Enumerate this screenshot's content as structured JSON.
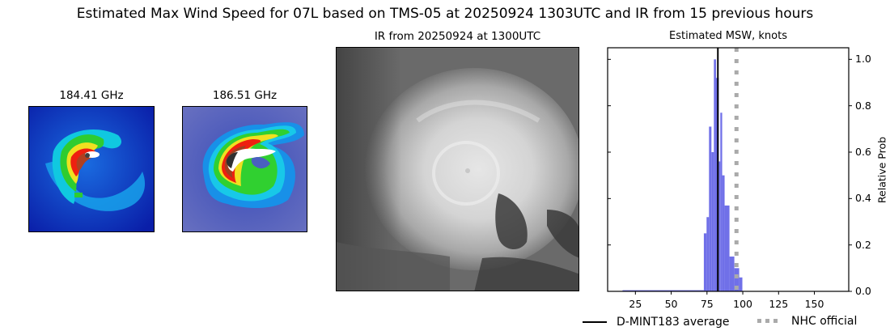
{
  "figure": {
    "suptitle": "Estimated Max Wind Speed for 07L based on TMS-05 at 20250924 1303UTC and IR from 15 previous hours"
  },
  "panels": {
    "mw1": {
      "title": "184.41 GHz",
      "icon": "microwave-image"
    },
    "mw2": {
      "title": "186.51 GHz",
      "icon": "microwave-image"
    },
    "ir": {
      "title": "IR from 20250924 at 1300UTC",
      "icon": "infrared-satellite-image"
    },
    "hist": {
      "title": "Estimated MSW, knots"
    }
  },
  "legend": {
    "items": [
      {
        "label": "D-MINT183 average",
        "style": "solid",
        "color": "#000000"
      },
      {
        "label": "NHC official",
        "style": "dotted",
        "color": "#aaaaaa"
      }
    ]
  },
  "chart_data": {
    "type": "bar",
    "title": "Estimated MSW, knots",
    "xlabel": "",
    "ylabel": "Relative Prob",
    "xlim": [
      5.6,
      174
    ],
    "ylim": [
      0,
      1.05
    ],
    "xticks": [
      25,
      50,
      75,
      100,
      125,
      150
    ],
    "yticks": [
      0.0,
      0.2,
      0.4,
      0.6,
      0.8,
      1.0
    ],
    "ytick_labels": [
      "0.0",
      "0.2",
      "0.4",
      "0.6",
      "0.8",
      "1.0"
    ],
    "y_axis_side": "right",
    "grid": false,
    "bar_color": "#7070e8",
    "bins": [
      {
        "x0": 16.0,
        "x1": 72.8,
        "value": 0.005
      },
      {
        "x0": 72.8,
        "x1": 74.7,
        "value": 0.25
      },
      {
        "x0": 74.7,
        "x1": 76.4,
        "value": 0.32
      },
      {
        "x0": 76.4,
        "x1": 78.1,
        "value": 0.71
      },
      {
        "x0": 78.1,
        "x1": 79.8,
        "value": 0.6
      },
      {
        "x0": 79.8,
        "x1": 81.3,
        "value": 1.0
      },
      {
        "x0": 81.3,
        "x1": 83.2,
        "value": 0.92
      },
      {
        "x0": 83.2,
        "x1": 84.3,
        "value": 0.56
      },
      {
        "x0": 84.3,
        "x1": 85.6,
        "value": 0.77
      },
      {
        "x0": 85.6,
        "x1": 87.3,
        "value": 0.5
      },
      {
        "x0": 87.3,
        "x1": 90.7,
        "value": 0.37
      },
      {
        "x0": 90.7,
        "x1": 94.1,
        "value": 0.15
      },
      {
        "x0": 94.1,
        "x1": 97.5,
        "value": 0.1
      },
      {
        "x0": 97.5,
        "x1": 99.7,
        "value": 0.06
      }
    ],
    "vlines": [
      {
        "name": "D-MINT183 average",
        "x": 82.6,
        "style": "solid",
        "color": "#000000"
      },
      {
        "name": "NHC official",
        "x": 95.6,
        "style": "dotted",
        "color": "#aaaaaa"
      }
    ],
    "legend_position": "bottom-right"
  }
}
